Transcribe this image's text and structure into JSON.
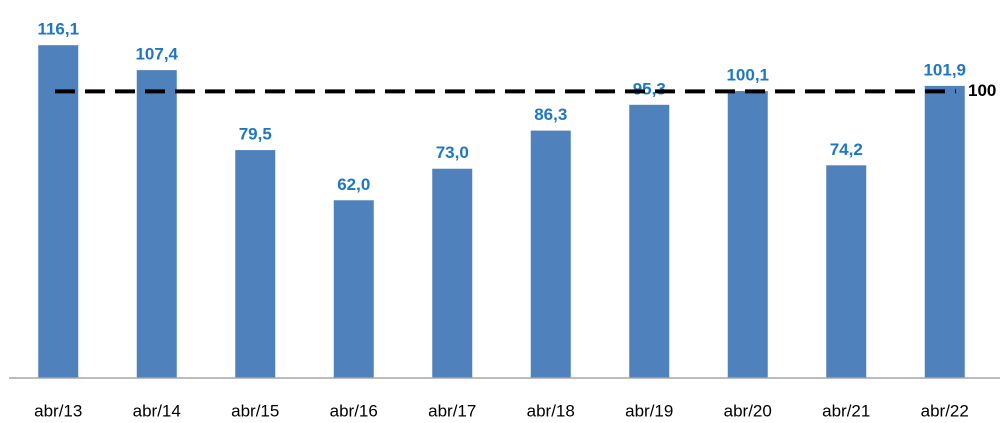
{
  "chart_data": {
    "type": "bar",
    "categories": [
      "abr/13",
      "abr/14",
      "abr/15",
      "abr/16",
      "abr/17",
      "abr/18",
      "abr/19",
      "abr/20",
      "abr/21",
      "abr/22"
    ],
    "values": [
      116.1,
      107.4,
      79.5,
      62.0,
      73.0,
      86.3,
      95.3,
      100.1,
      74.2,
      101.9
    ],
    "value_labels": [
      "116,1",
      "107,4",
      "79,5",
      "62,0",
      "73,0",
      "86,3",
      "95,3",
      "100,1",
      "74,2",
      "101,9"
    ],
    "color": "#4f81bd",
    "value_label_color": "#1f77c4",
    "reference_line": 100,
    "reference_line_color": "#000000",
    "ylim": [
      0,
      120
    ]
  }
}
